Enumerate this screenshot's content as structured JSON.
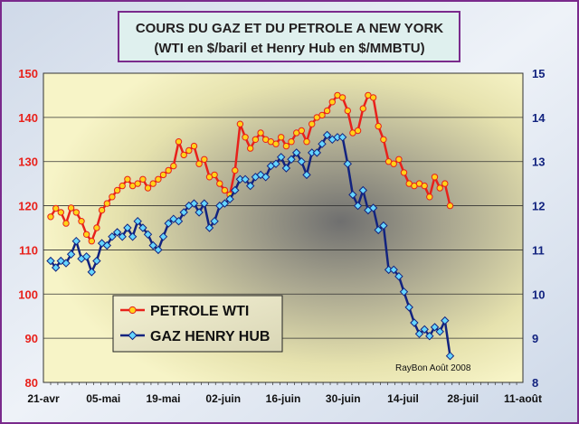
{
  "chart_data": {
    "type": "line",
    "title": "COURS DU GAZ ET DU PETROLE A NEW YORK",
    "subtitle": "(WTI en $/baril et Henry Hub en $/MMBTU)",
    "credit": "RayBon Août 2008",
    "x_tick_labels": [
      "21-avr",
      "05-mai",
      "19-mai",
      "02-juin",
      "16-juin",
      "30-juin",
      "14-juil",
      "28-juil",
      "11-août"
    ],
    "y_left": {
      "ylim": [
        80,
        150
      ],
      "ticks": [
        "80",
        "90",
        "100",
        "110",
        "120",
        "130",
        "140",
        "150"
      ]
    },
    "y_right": {
      "ylim": [
        8,
        15
      ],
      "ticks": [
        "8",
        "9",
        "10",
        "11",
        "12",
        "13",
        "14",
        "15"
      ]
    },
    "grid": true,
    "legend_position": "bottom-left",
    "colors": {
      "wti_line": "#e8211b",
      "wti_marker": "#ffd319",
      "gas_line": "#12237f",
      "gas_marker": "#66d6ff",
      "left_axis_text": "#e8211b",
      "right_axis_text": "#12237f",
      "title_border": "#7a2a8c",
      "frame_border": "#7a2a8c"
    },
    "series": [
      {
        "name": "PETROLE WTI",
        "axis": "left",
        "values": [
          117.5,
          119.4,
          118.5,
          116.0,
          119.5,
          118.5,
          116.5,
          113.5,
          112.0,
          115.0,
          119.0,
          120.5,
          122.0,
          123.5,
          124.5,
          126.0,
          124.5,
          125.0,
          126.0,
          124.0,
          125.0,
          126.0,
          127.0,
          128.0,
          129.0,
          134.5,
          131.5,
          132.5,
          133.5,
          129.5,
          130.5,
          126.5,
          127.0,
          125.0,
          123.5,
          122.5,
          128.0,
          138.5,
          135.5,
          133.0,
          135.0,
          136.5,
          135.0,
          134.5,
          134.0,
          135.5,
          133.5,
          134.5,
          136.5,
          137.0,
          134.5,
          138.5,
          140.0,
          140.5,
          141.5,
          143.5,
          145.0,
          144.5,
          141.5,
          136.5,
          137.0,
          142.0,
          145.0,
          144.5,
          138.0,
          135.0,
          130.0,
          129.5,
          130.5,
          127.5,
          125.0,
          124.5,
          125.0,
          124.5,
          122.0,
          126.5,
          124.0,
          125.0,
          120.0
        ],
        "x_positions_days": [
          0,
          1,
          2,
          3,
          4,
          5,
          6,
          7,
          8,
          9,
          10,
          11,
          12,
          13,
          14,
          15,
          16,
          17,
          18,
          19,
          20,
          21,
          22,
          23,
          24,
          25,
          26,
          27,
          28,
          29,
          30,
          31,
          32,
          33,
          34,
          35,
          36,
          37,
          38,
          39,
          40,
          41,
          42,
          43,
          44,
          45,
          46,
          47,
          48,
          49,
          50,
          51,
          52,
          53,
          54,
          55,
          56,
          57,
          58,
          59,
          60,
          61,
          62,
          63,
          64,
          65,
          66,
          67,
          68,
          69,
          70,
          71,
          72,
          73,
          74,
          75,
          76,
          77,
          78
        ]
      },
      {
        "name": "GAZ HENRY HUB",
        "axis": "right",
        "values": [
          10.75,
          10.6,
          10.75,
          10.7,
          10.9,
          11.2,
          10.8,
          10.85,
          10.5,
          10.75,
          11.15,
          11.1,
          11.3,
          11.4,
          11.3,
          11.5,
          11.3,
          11.65,
          11.5,
          11.35,
          11.1,
          11.0,
          11.3,
          11.6,
          11.7,
          11.65,
          11.85,
          12.0,
          12.05,
          11.85,
          12.05,
          11.5,
          11.65,
          12.0,
          12.05,
          12.15,
          12.35,
          12.6,
          12.6,
          12.45,
          12.65,
          12.7,
          12.65,
          12.9,
          12.95,
          13.1,
          12.85,
          13.05,
          13.2,
          13.0,
          12.7,
          13.2,
          13.2,
          13.4,
          13.6,
          13.5,
          13.55,
          13.55,
          12.95,
          12.25,
          12.0,
          12.35,
          11.9,
          11.95,
          11.45,
          11.55,
          10.55,
          10.55,
          10.4,
          10.05,
          9.7,
          9.35,
          9.1,
          9.2,
          9.05,
          9.25,
          9.15,
          9.4,
          8.6
        ],
        "x_positions_days": [
          0,
          1,
          2,
          3,
          4,
          5,
          6,
          7,
          8,
          9,
          10,
          11,
          12,
          13,
          14,
          15,
          16,
          17,
          18,
          19,
          20,
          21,
          22,
          23,
          24,
          25,
          26,
          27,
          28,
          29,
          30,
          31,
          32,
          33,
          34,
          35,
          36,
          37,
          38,
          39,
          40,
          41,
          42,
          43,
          44,
          45,
          46,
          47,
          48,
          49,
          50,
          51,
          52,
          53,
          54,
          55,
          56,
          57,
          58,
          59,
          60,
          61,
          62,
          63,
          64,
          65,
          66,
          67,
          68,
          69,
          70,
          71,
          72,
          73,
          74,
          75,
          76,
          77,
          78
        ]
      }
    ]
  }
}
